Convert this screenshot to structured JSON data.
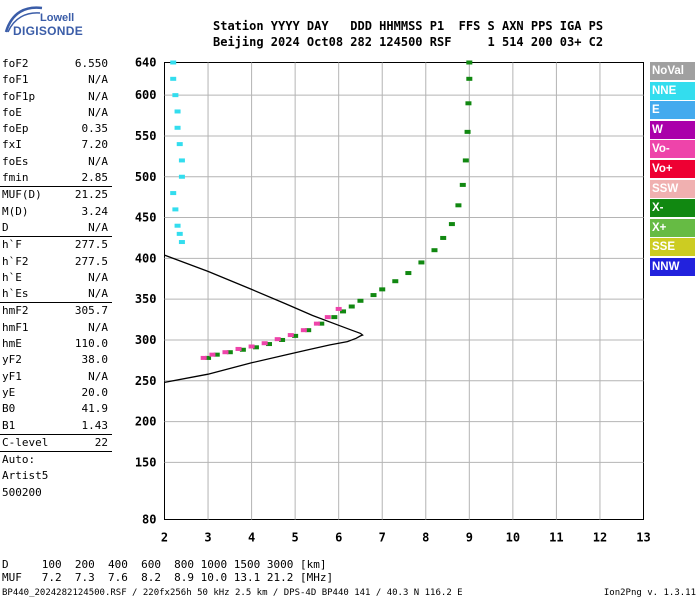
{
  "logo": {
    "top": "Lowell",
    "bottom": "DIGISONDE"
  },
  "header": {
    "line1": "Station YYYY DAY   DDD HHMMSS P1  FFS S AXN PPS IGA PS",
    "line2": "Beijing 2024 Oct08 282 124500 RSF     1 514 200 03+ C2"
  },
  "params": {
    "group1": [
      {
        "name": "foF2",
        "value": "6.550"
      },
      {
        "name": "foF1",
        "value": "N/A"
      },
      {
        "name": "foF1p",
        "value": "N/A"
      },
      {
        "name": "foE",
        "value": "N/A"
      },
      {
        "name": "foEp",
        "value": "0.35"
      },
      {
        "name": "fxI",
        "value": "7.20"
      },
      {
        "name": "foEs",
        "value": "N/A"
      },
      {
        "name": "fmin",
        "value": "2.85"
      }
    ],
    "group2": [
      {
        "name": "MUF(D)",
        "value": "21.25"
      },
      {
        "name": "M(D)",
        "value": "3.24"
      },
      {
        "name": "D",
        "value": "N/A"
      }
    ],
    "group3": [
      {
        "name": "h`F",
        "value": "277.5"
      },
      {
        "name": "h`F2",
        "value": "277.5"
      },
      {
        "name": "h`E",
        "value": "N/A"
      },
      {
        "name": "h`Es",
        "value": "N/A"
      }
    ],
    "group4": [
      {
        "name": "hmF2",
        "value": "305.7"
      },
      {
        "name": "hmF1",
        "value": "N/A"
      },
      {
        "name": "hmE",
        "value": "110.0"
      },
      {
        "name": "yF2",
        "value": "38.0"
      },
      {
        "name": "yF1",
        "value": "N/A"
      },
      {
        "name": "yE",
        "value": "20.0"
      },
      {
        "name": "B0",
        "value": "41.9"
      },
      {
        "name": "B1",
        "value": "1.43"
      }
    ],
    "group5": [
      {
        "name": "C-level",
        "value": "22"
      }
    ],
    "auto": [
      "Auto:",
      "Artist5",
      "500200"
    ]
  },
  "legend": [
    {
      "label": "NoVal",
      "color": "#a0a0a0"
    },
    {
      "label": "NNE",
      "color": "#33ddee"
    },
    {
      "label": "E",
      "color": "#44aaee"
    },
    {
      "label": "W",
      "color": "#aa00aa"
    },
    {
      "label": "Vo-",
      "color": "#ee44aa"
    },
    {
      "label": "Vo+",
      "color": "#ee0033"
    },
    {
      "label": "SSW",
      "color": "#f0b0b0"
    },
    {
      "label": "X-",
      "color": "#118811"
    },
    {
      "label": "X+",
      "color": "#66bb44"
    },
    {
      "label": "SSE",
      "color": "#cccc22"
    },
    {
      "label": "NNW",
      "color": "#2222dd"
    }
  ],
  "bottom": {
    "line1": "D     100  200  400  600  800 1000 1500 3000 [km]",
    "line2": "MUF   7.2  7.3  7.6  8.2  8.9 10.0 13.1 21.2 [MHz]"
  },
  "footer": {
    "left": "BP440_2024282124500.RSF / 220fx256h 50 kHz 2.5 km / DPS-4D BP440 141 / 40.3 N 116.2 E",
    "right": "Ion2Png v. 1.3.11"
  },
  "chart_data": {
    "type": "scatter",
    "title": "",
    "xlabel": "",
    "ylabel": "",
    "xlim": [
      2,
      13
    ],
    "ylim": [
      80,
      640
    ],
    "x_ticks": [
      2,
      3,
      4,
      5,
      6,
      7,
      8,
      9,
      10,
      11,
      12,
      13
    ],
    "y_ticks": [
      80,
      150,
      200,
      250,
      300,
      350,
      400,
      450,
      500,
      550,
      600,
      640
    ],
    "grid": true,
    "series": [
      {
        "name": "X-",
        "color": "#118811",
        "x": [
          3.0,
          3.2,
          3.5,
          3.8,
          4.1,
          4.4,
          4.7,
          5.0,
          5.3,
          5.6,
          5.9,
          6.1,
          6.3,
          6.5,
          6.8,
          7.0,
          7.3,
          7.6,
          7.9,
          8.2,
          8.4,
          8.6,
          8.75,
          8.85,
          8.92,
          8.96,
          8.98,
          9.0,
          9.0
        ],
        "y": [
          278,
          282,
          285,
          288,
          291,
          295,
          300,
          305,
          312,
          320,
          328,
          335,
          341,
          348,
          355,
          362,
          372,
          382,
          395,
          410,
          425,
          442,
          465,
          490,
          520,
          555,
          590,
          620,
          640
        ]
      },
      {
        "name": "Vo-",
        "color": "#ee44aa",
        "x": [
          2.9,
          3.1,
          3.4,
          3.7,
          4.0,
          4.3,
          4.6,
          4.9,
          5.2,
          5.5,
          5.75,
          6.0
        ],
        "y": [
          278,
          282,
          285,
          289,
          292,
          296,
          301,
          306,
          312,
          320,
          328,
          338
        ]
      },
      {
        "name": "NNE",
        "color": "#33ddee",
        "x": [
          2.2,
          2.2,
          2.25,
          2.3,
          2.3,
          2.35,
          2.4,
          2.4,
          2.2,
          2.25,
          2.3,
          2.35,
          2.4
        ],
        "y": [
          640,
          620,
          600,
          580,
          560,
          540,
          520,
          500,
          480,
          460,
          440,
          430,
          420
        ]
      }
    ],
    "profile_curve": {
      "x": [
        2.0,
        3.0,
        4.0,
        4.8,
        5.3,
        5.8,
        6.2,
        6.4,
        6.5,
        6.55,
        6.5,
        6.3,
        6.0,
        5.4,
        4.8,
        4.0,
        3.0,
        2.0
      ],
      "y": [
        248,
        258,
        272,
        282,
        288,
        294,
        298,
        302,
        305,
        306,
        308,
        312,
        318,
        330,
        344,
        362,
        384,
        404
      ]
    }
  }
}
